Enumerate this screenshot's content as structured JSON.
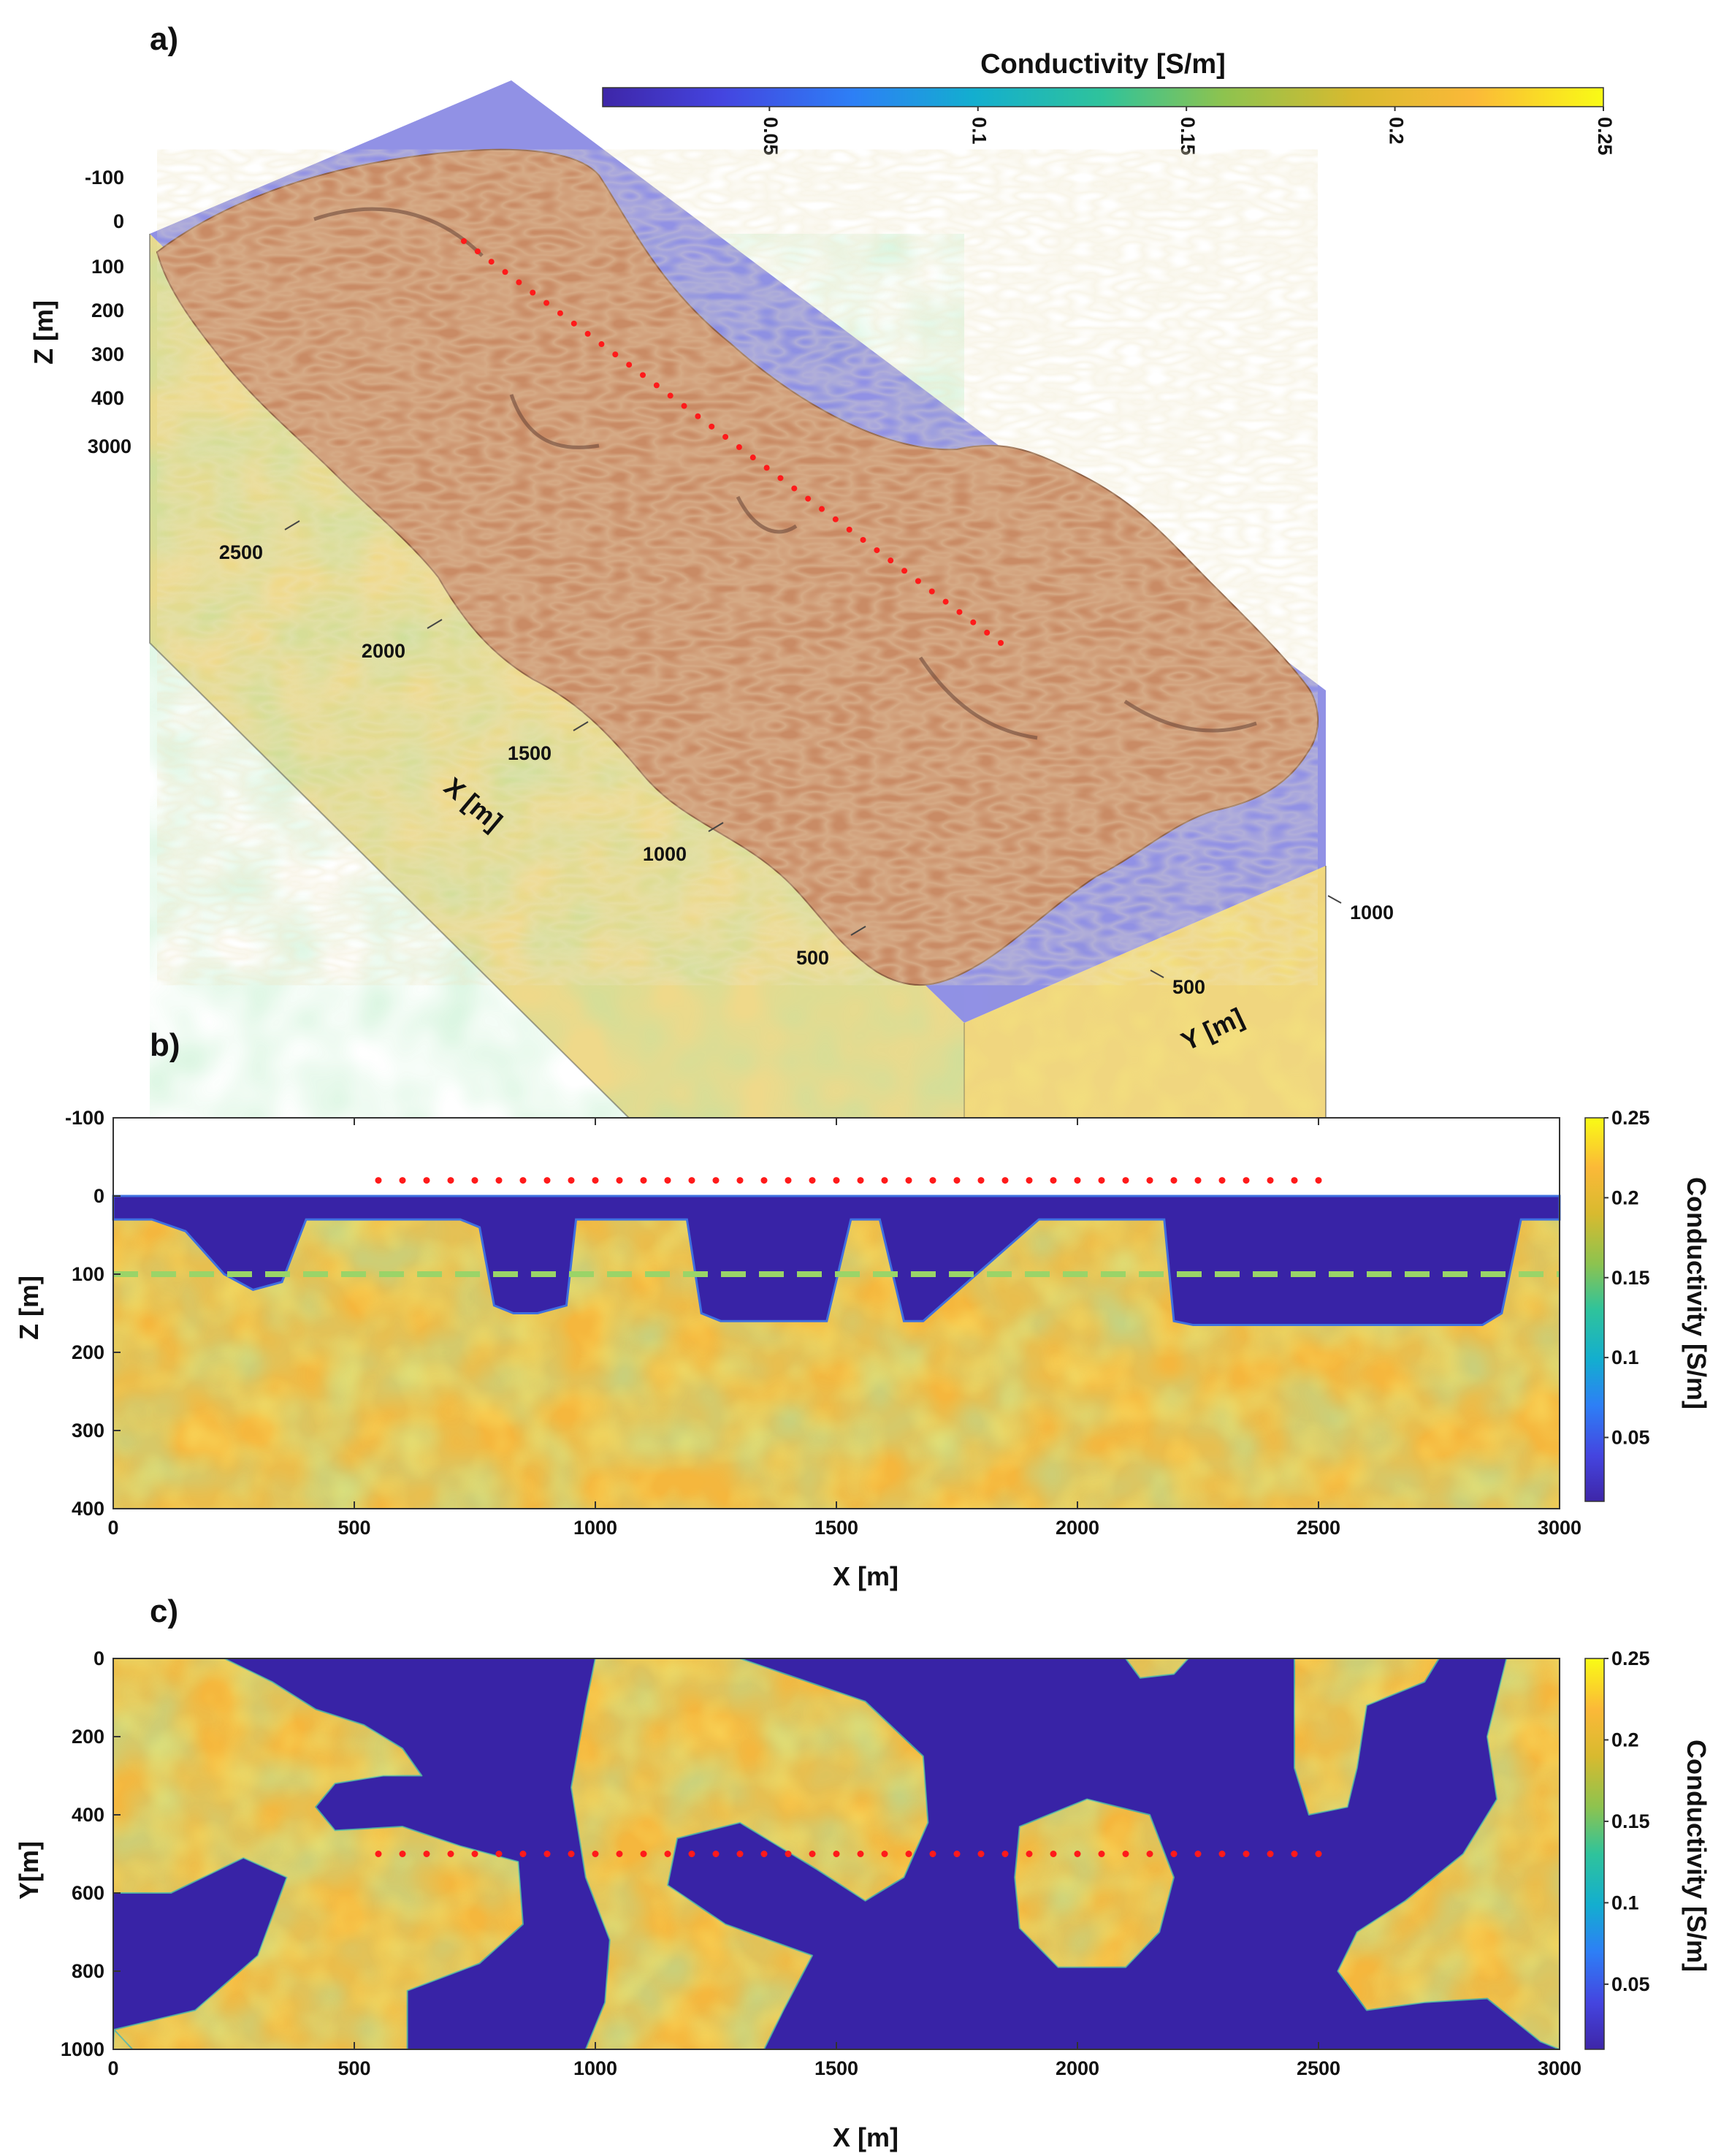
{
  "colors": {
    "cmap": [
      "#3e26a8",
      "#4445e0",
      "#2d7ff6",
      "#13aecf",
      "#2fc39b",
      "#8dc34f",
      "#d8ba2f",
      "#fbb938",
      "#f6d534",
      "#f9fb15"
    ],
    "water": "#3823a6",
    "sediment": "#f5b73d",
    "surface3d": "#c98b65",
    "sea3d": "#7e7ee0",
    "markers": "#ff1a1a",
    "dashline": "#9ad468"
  },
  "panels": {
    "a": {
      "letter": "a)",
      "colorbar": {
        "title": "Conductivity [S/m]",
        "ticks": [
          "0.05",
          "0.1",
          "0.15",
          "0.2",
          "0.25"
        ]
      },
      "z_axis": {
        "label": "Z [m]",
        "ticks": [
          "-100",
          "0",
          "100",
          "200",
          "300",
          "400"
        ]
      },
      "x_axis": {
        "label": "X [m]",
        "ticks": [
          "3000",
          "2500",
          "2000",
          "1500",
          "1000",
          "500"
        ]
      },
      "y_axis": {
        "label": "Y [m]",
        "ticks": [
          "1000",
          "500"
        ]
      }
    },
    "b": {
      "letter": "b)",
      "xlabel": "X [m]",
      "ylabel": "Z [m]",
      "xticks": [
        "0",
        "500",
        "1000",
        "1500",
        "2000",
        "2500",
        "3000"
      ],
      "yticks": [
        "-100",
        "0",
        "100",
        "200",
        "300",
        "400"
      ],
      "colorbar": {
        "label": "Conductivity [S/m]",
        "ticks": [
          "0.25",
          "0.2",
          "0.15",
          "0.1",
          "0.05"
        ]
      }
    },
    "c": {
      "letter": "c)",
      "xlabel": "X [m]",
      "ylabel": "Y[m]",
      "xticks": [
        "0",
        "500",
        "1000",
        "1500",
        "2000",
        "2500",
        "3000"
      ],
      "yticks": [
        "0",
        "200",
        "400",
        "600",
        "800",
        "1000"
      ],
      "colorbar": {
        "label": "Conductivity [S/m]",
        "ticks": [
          "0.25",
          "0.2",
          "0.15",
          "0.1",
          "0.05"
        ]
      }
    }
  },
  "chart_data": [
    {
      "type": "heatmap",
      "panel": "b",
      "title": "",
      "xlabel": "X [m]",
      "ylabel": "Z [m]",
      "xlim": [
        0,
        3000
      ],
      "ylim": [
        -100,
        400
      ],
      "y_reversed": true,
      "clim": [
        0.01,
        0.25
      ],
      "water_conductivity": 0.01,
      "sediment_conductivity_range": [
        0.12,
        0.25
      ],
      "seafloor_depth_profile": {
        "x": [
          0,
          80,
          150,
          230,
          290,
          350,
          400,
          720,
          760,
          790,
          830,
          880,
          940,
          960,
          990,
          1190,
          1220,
          1260,
          1480,
          1530,
          1590,
          1640,
          1680,
          1920,
          1950,
          1990,
          2180,
          2200,
          2240,
          2840,
          2880,
          2920,
          3000
        ],
        "z": [
          30,
          30,
          45,
          100,
          120,
          110,
          30,
          30,
          40,
          140,
          150,
          150,
          140,
          30,
          30,
          30,
          150,
          160,
          160,
          30,
          30,
          160,
          160,
          30,
          30,
          30,
          30,
          160,
          165,
          165,
          150,
          30,
          30
        ]
      },
      "receivers": {
        "x_start": 550,
        "x_end": 2500,
        "spacing": 50,
        "z": -20
      },
      "reference_depth": 100
    },
    {
      "type": "heatmap",
      "panel": "c",
      "title": "",
      "xlabel": "X [m]",
      "ylabel": "Y[m]",
      "xlim": [
        0,
        3000
      ],
      "ylim": [
        0,
        1000
      ],
      "y_reversed": true,
      "clim": [
        0.01,
        0.25
      ],
      "map_depth": 100,
      "receivers": {
        "x_start": 550,
        "x_end": 2500,
        "spacing": 50,
        "y": 500
      }
    }
  ]
}
